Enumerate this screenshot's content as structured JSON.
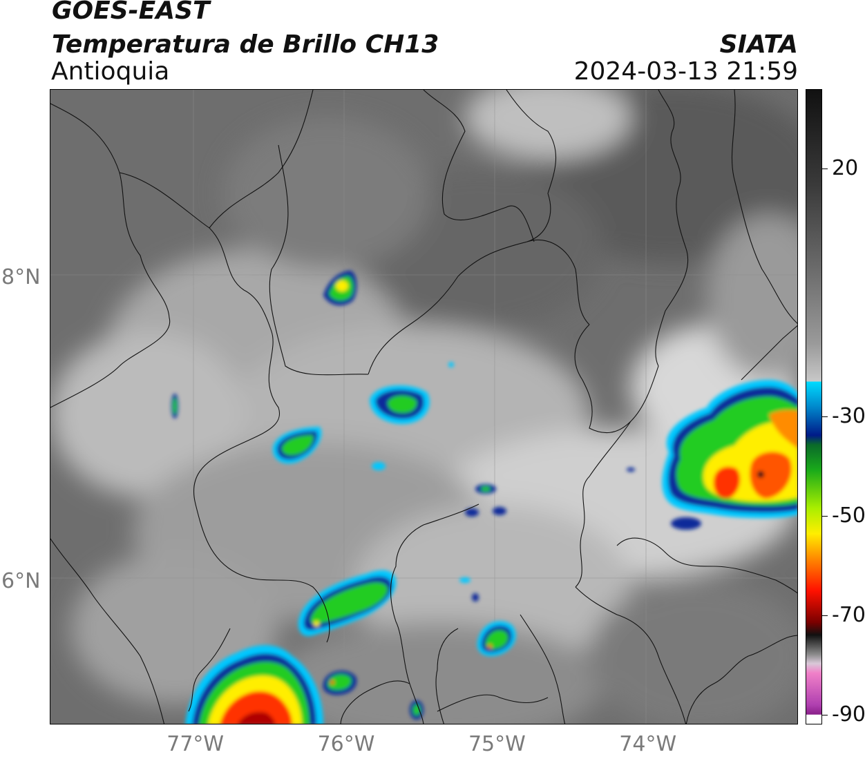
{
  "header": {
    "satellite": "GOES-EAST",
    "product": "Temperatura de Brillo CH13",
    "region": "Antioquia",
    "brand": "SIATA",
    "timestamp": "2024-03-13 21:59"
  },
  "map": {
    "lon_ticks": [
      "77°W",
      "76°W",
      "75°W",
      "74°W"
    ],
    "lat_ticks": [
      "8°N",
      "6°N"
    ],
    "lon_values": [
      -77,
      -76,
      -75,
      -74
    ],
    "lat_values": [
      8,
      6
    ],
    "lon_range": [
      -77.94,
      -72.98
    ],
    "lat_range": [
      5.06,
      9.25
    ]
  },
  "colorbar": {
    "ticks": [
      "20",
      "-30",
      "-50",
      "-70",
      "-90"
    ],
    "values": [
      20,
      -30,
      -50,
      -70,
      -90
    ],
    "range": [
      -92,
      36
    ]
  },
  "colors": {
    "cloud_cold": "#ff0000",
    "storm_green": "#22cc22",
    "storm_yellow": "#ffee00",
    "storm_blue": "#0a2a9a",
    "storm_cyan": "#00c8ff"
  }
}
